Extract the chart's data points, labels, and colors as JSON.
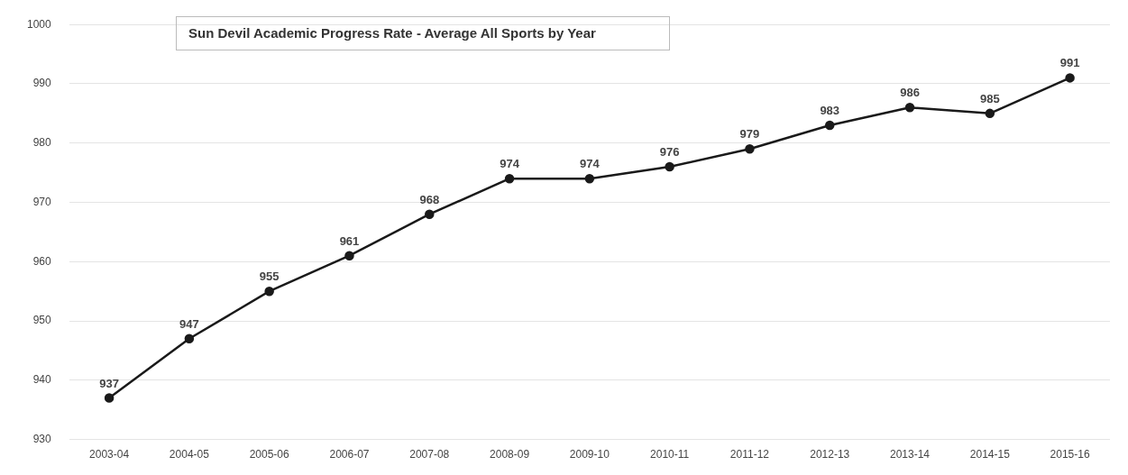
{
  "chart_data": {
    "type": "line",
    "title": "Sun Devil Academic Progress Rate - Average All Sports by Year",
    "categories": [
      "2003-04",
      "2004-05",
      "2005-06",
      "2006-07",
      "2007-08",
      "2008-09",
      "2009-10",
      "2010-11",
      "2011-12",
      "2012-13",
      "2013-14",
      "2014-15",
      "2015-16"
    ],
    "series": [
      {
        "color": "#1a1a1a",
        "values": [
          937,
          947,
          955,
          961,
          968,
          974,
          974,
          976,
          979,
          983,
          986,
          985,
          991
        ]
      }
    ],
    "ylim": [
      930,
      1000
    ],
    "yticks": [
      930,
      940,
      950,
      960,
      970,
      980,
      990,
      1000
    ],
    "grid": "y",
    "marker": "circle",
    "data_labels": true,
    "legend": false
  }
}
